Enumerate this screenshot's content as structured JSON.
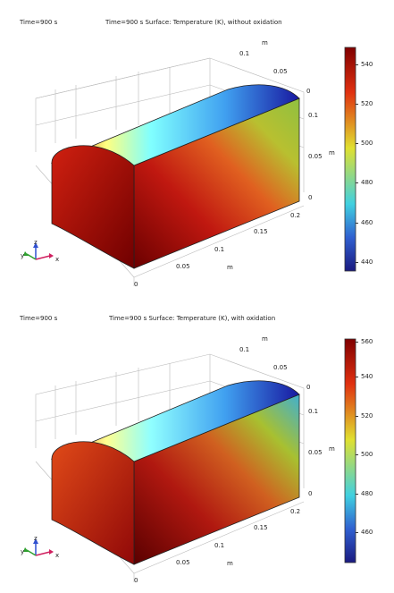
{
  "panels": [
    {
      "time_label": "Time=900 s",
      "title": "Time=900 s Surface: Temperature (K), without oxidation",
      "colorbar": {
        "ticks": [
          "540",
          "520",
          "500",
          "480",
          "460",
          "440"
        ]
      },
      "axis_unit": "m",
      "axis_ticks": {
        "top": [
          "0.1",
          "0.05",
          "0"
        ],
        "right": [
          "0.1",
          "0.05",
          "0"
        ],
        "bottom_right": [
          "0.2",
          "0.15",
          "0.1"
        ],
        "bottom_left": [
          "0.05",
          "0"
        ]
      }
    },
    {
      "time_label": "Time=900 s",
      "title": "Time=900 s Surface: Temperature (K), with oxidation",
      "colorbar": {
        "ticks": [
          "560",
          "540",
          "520",
          "500",
          "480",
          "460"
        ]
      },
      "axis_unit": "m",
      "axis_ticks": {
        "top": [
          "0.1",
          "0.05",
          "0"
        ],
        "right": [
          "0.1",
          "0.05",
          "0"
        ],
        "bottom_right": [
          "0.2",
          "0.15",
          "0.1"
        ],
        "bottom_left": [
          "0.05",
          "0"
        ]
      }
    }
  ],
  "axes_triad": {
    "z": "z",
    "y": "y",
    "x": "x"
  },
  "colors": {
    "hot": "#8b0000",
    "warm": "#e03010",
    "mid": "#f0e020",
    "cool": "#30c0e0",
    "cold": "#2020a0"
  }
}
